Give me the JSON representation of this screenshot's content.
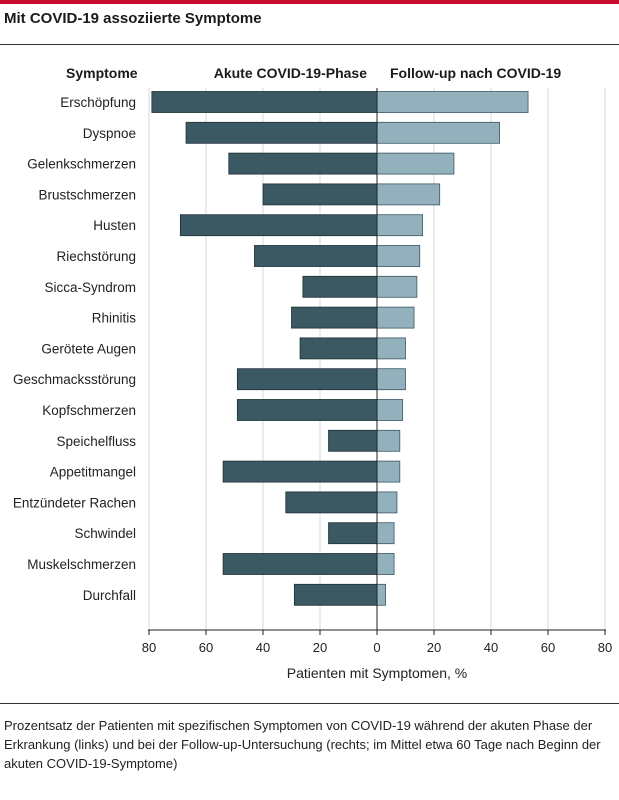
{
  "title": "Mit COVID-19 assoziierte Symptome",
  "caption": "Prozentsatz der Patienten mit spezifischen Symptomen von COVID-19 während der akuten Phase der Erkrankung (links) und bei der Follow-up-Untersuchung (rechts; im Mittel etwa 60 Tage nach Beginn der akuten COVID-19-Symptome)",
  "colors": {
    "acute": "#3b5963",
    "followup": "#93b1bd",
    "title_rule": "#c8102e",
    "grid": "#d8d8d8"
  },
  "chart_data": {
    "type": "bar",
    "orientation": "horizontal-diverging",
    "category_header": "Symptome",
    "categories": [
      "Erschöpfung",
      "Dyspnoe",
      "Gelenkschmerzen",
      "Brustschmerzen",
      "Husten",
      "Riechstörung",
      "Sicca-Syndrom",
      "Rhinitis",
      "Gerötete Augen",
      "Geschmacksstörung",
      "Kopfschmerzen",
      "Speichelfluss",
      "Appetitmangel",
      "Entzündeter Rachen",
      "Schwindel",
      "Muskelschmerzen",
      "Durchfall"
    ],
    "series": [
      {
        "name": "Akute COVID-19-Phase",
        "side": "left",
        "values": [
          79,
          67,
          52,
          40,
          69,
          43,
          26,
          30,
          27,
          49,
          49,
          17,
          54,
          32,
          17,
          54,
          29
        ]
      },
      {
        "name": "Follow-up nach COVID-19",
        "side": "right",
        "values": [
          53,
          43,
          27,
          22,
          16,
          15,
          14,
          13,
          10,
          10,
          9,
          8,
          8,
          7,
          6,
          6,
          3
        ]
      }
    ],
    "xlabel": "Patienten mit Symptomen, %",
    "xlim": [
      -80,
      80
    ],
    "xticks": [
      -80,
      -60,
      -40,
      -20,
      0,
      20,
      40,
      60,
      80
    ],
    "xtick_labels": [
      "80",
      "60",
      "40",
      "20",
      "0",
      "20",
      "40",
      "60",
      "80"
    ],
    "grid": true
  }
}
